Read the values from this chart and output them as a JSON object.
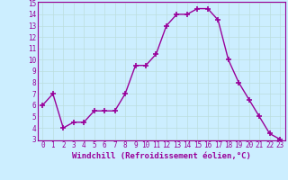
{
  "x": [
    0,
    1,
    2,
    3,
    4,
    5,
    6,
    7,
    8,
    9,
    10,
    11,
    12,
    13,
    14,
    15,
    16,
    17,
    18,
    19,
    20,
    21,
    22,
    23
  ],
  "y": [
    6,
    7,
    4,
    4.5,
    4.5,
    5.5,
    5.5,
    5.5,
    7,
    9.5,
    9.5,
    10.5,
    13,
    14,
    14,
    14.5,
    14.5,
    13.5,
    10,
    8,
    6.5,
    5,
    3.5,
    3
  ],
  "line_color": "#990099",
  "marker": "+",
  "marker_size": 4,
  "marker_lw": 1.2,
  "bg_color": "#cceeff",
  "grid_color": "#bbdddd",
  "xlabel": "Windchill (Refroidissement éolien,°C)",
  "ylim": [
    3,
    15
  ],
  "xlim": [
    -0.5,
    23.5
  ],
  "yticks": [
    3,
    4,
    5,
    6,
    7,
    8,
    9,
    10,
    11,
    12,
    13,
    14,
    15
  ],
  "xticks": [
    0,
    1,
    2,
    3,
    4,
    5,
    6,
    7,
    8,
    9,
    10,
    11,
    12,
    13,
    14,
    15,
    16,
    17,
    18,
    19,
    20,
    21,
    22,
    23
  ],
  "tick_fontsize": 5.5,
  "xlabel_fontsize": 6.5,
  "line_width": 1.0
}
